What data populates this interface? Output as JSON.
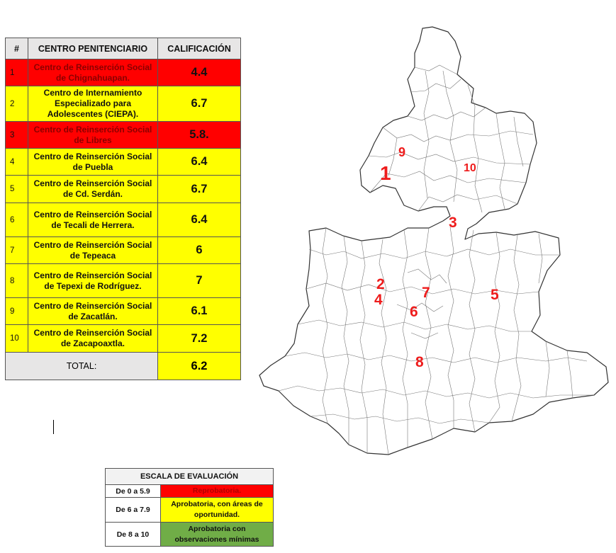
{
  "table": {
    "headers": {
      "num": "#",
      "center": "CENTRO PENITENCIARIO",
      "score": "CALIFICACIÓN"
    },
    "rows": [
      {
        "num": "1",
        "name": "Centro de Reinserción Social de Chignahuapan.",
        "score": "4.4",
        "color": "#ff0000"
      },
      {
        "num": "2",
        "name": "Centro de Internamiento Especializado para Adolescentes (CIEPA).",
        "score": "6.7",
        "color": "#ffff00"
      },
      {
        "num": "3",
        "name": "Centro de Reinserción Social de Libres",
        "score": "5.8.",
        "color": "#ff0000"
      },
      {
        "num": "4",
        "name": "Centro de Reinserción Social de Puebla",
        "score": "6.4",
        "color": "#ffff00"
      },
      {
        "num": "5",
        "name": "Centro de Reinserción Social de Cd. Serdán.",
        "score": "6.7",
        "color": "#ffff00"
      },
      {
        "num": "6",
        "name": "Centro de Reinserción Social de Tecali de Herrera.",
        "score": "6.4",
        "color": "#ffff00"
      },
      {
        "num": "7",
        "name": "Centro de Reinserción Social de Tepeaca",
        "score": "6",
        "color": "#ffff00"
      },
      {
        "num": "8",
        "name": "Centro de Reinserción Social de Tepexi de Rodríguez.",
        "score": "7",
        "color": "#ffff00"
      },
      {
        "num": "9",
        "name": "Centro de Reinserción Social de Zacatlán.",
        "score": "6.1",
        "color": "#ffff00"
      },
      {
        "num": "10",
        "name": "Centro de Reinserción Social de Zacapoaxtla.",
        "score": "7.2",
        "color": "#ffff00"
      }
    ],
    "total": {
      "label": "TOTAL:",
      "score": "6.2"
    }
  },
  "map": {
    "label_color": "#ee1c1c",
    "markers": [
      {
        "label": "1"
      },
      {
        "label": "2"
      },
      {
        "label": "3"
      },
      {
        "label": "4"
      },
      {
        "label": "5"
      },
      {
        "label": "6"
      },
      {
        "label": "7"
      },
      {
        "label": "8"
      },
      {
        "label": "9"
      },
      {
        "label": "10"
      }
    ]
  },
  "scale": {
    "title": "ESCALA DE EVALUACIÓN",
    "rows": [
      {
        "range": "De 0 a 5.9",
        "description": "Reprobatoria.",
        "color": "#ff0000"
      },
      {
        "range": "De 6 a 7.9",
        "description": "Aprobatoria, con áreas de oportunidad.",
        "color": "#ffff00"
      },
      {
        "range": "De 8 a 10",
        "description": "Aprobatoria con observaciones mínimas",
        "color": "#70ad47"
      }
    ]
  }
}
